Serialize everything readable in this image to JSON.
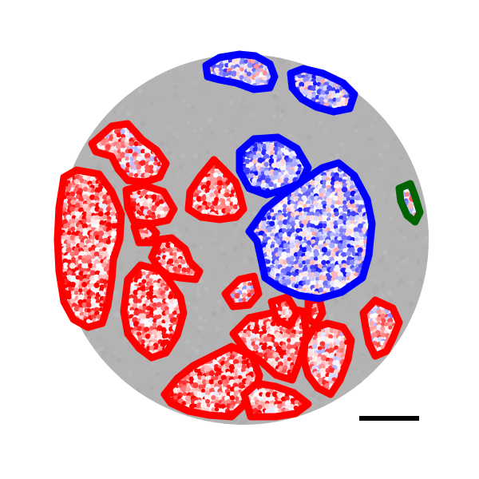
{
  "figure": {
    "background_color": "#ffffff",
    "tissue_color": "#b3b3b3",
    "colormap": {
      "name": "bwr",
      "low": "#0000ff",
      "mid": "#ffffff",
      "high": "#ff0000"
    },
    "region_groups": [
      {
        "group": "red-outlined-regions",
        "outline_color": "#ff0000",
        "count": 15
      },
      {
        "group": "blue-outlined-regions",
        "outline_color": "#0000ff",
        "count": 4
      },
      {
        "group": "green-outlined-regions",
        "outline_color": "#006400",
        "count": 1
      }
    ],
    "scale_bar": {
      "color": "#000000"
    }
  }
}
